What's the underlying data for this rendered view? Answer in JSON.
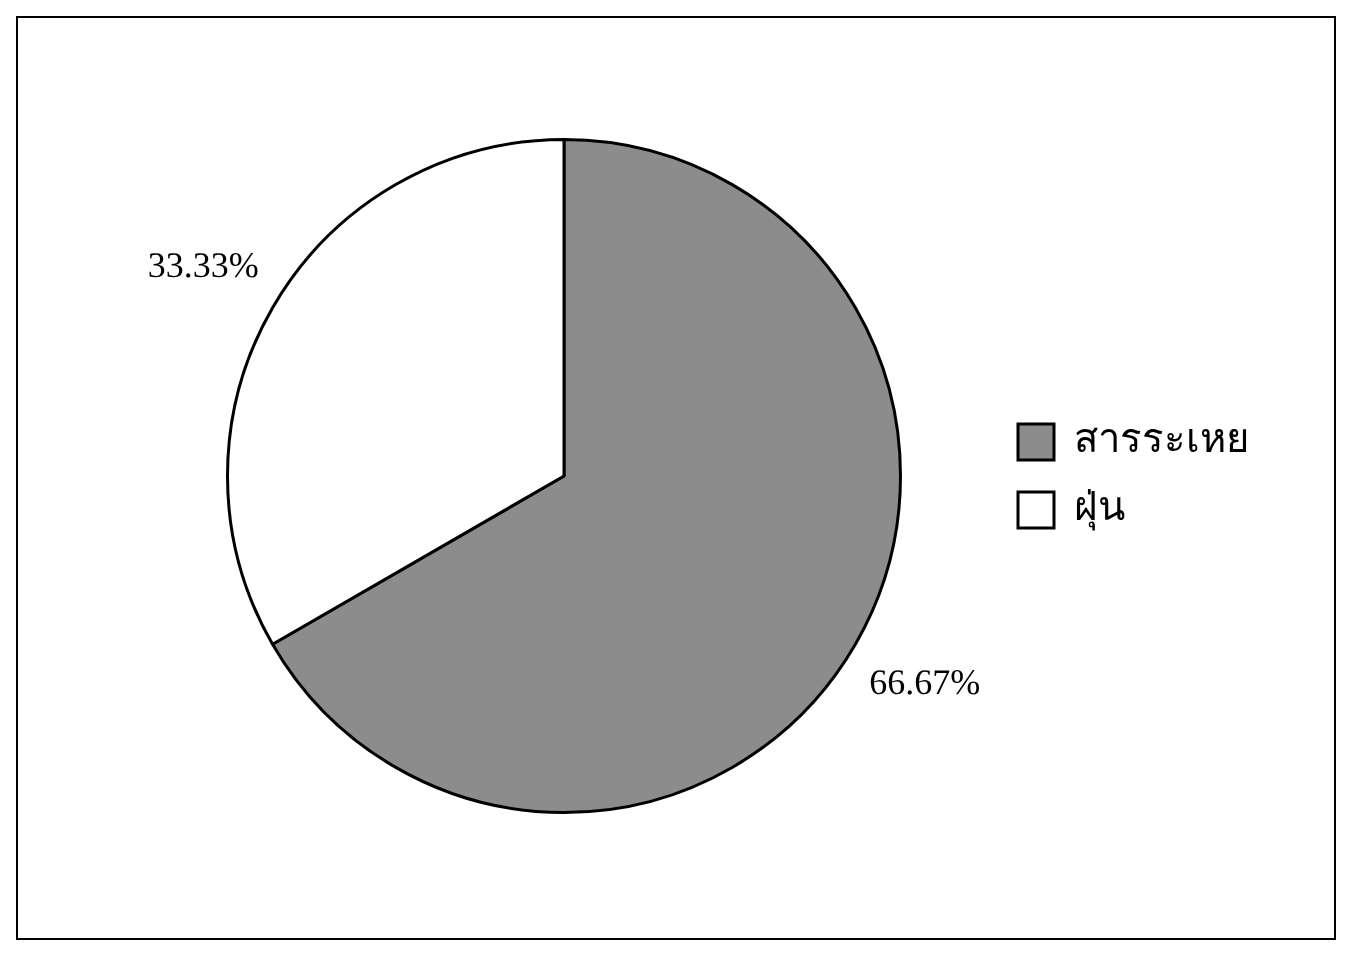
{
  "chart_data": {
    "type": "pie",
    "categories": [
      "สารระเหย",
      "ฝุ่น"
    ],
    "values": [
      66.67,
      33.33
    ],
    "colors": [
      "#8c8c8c",
      "#ffffff"
    ],
    "value_labels": [
      "66.67%",
      "33.33%"
    ],
    "legend": "right"
  }
}
